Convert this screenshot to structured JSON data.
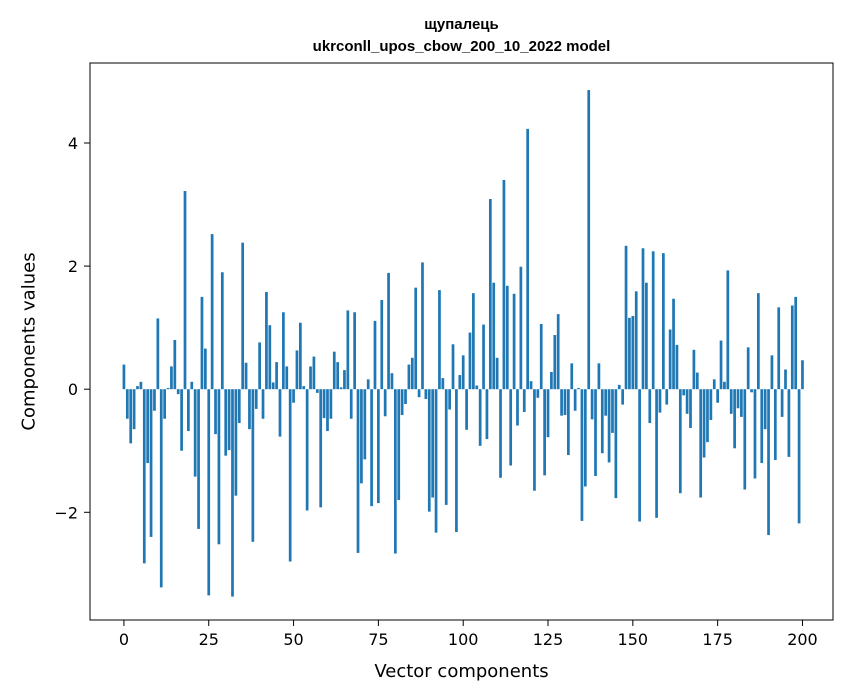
{
  "chart_data": {
    "type": "bar",
    "title_line1": "щупалець",
    "title_line2": "ukrconll_upos_cbow_200_10_2022 model",
    "xlabel": "Vector components",
    "ylabel": "Components values",
    "xlim": [
      -10,
      209
    ],
    "ylim": [
      -3.75,
      5.3
    ],
    "x_ticks": [
      0,
      25,
      50,
      75,
      100,
      125,
      150,
      175,
      200
    ],
    "y_ticks": [
      -2,
      0,
      2,
      4
    ],
    "y_tick_labels": [
      "−2",
      "0",
      "2",
      "4"
    ],
    "bar_color": "#1f77b4",
    "grid": false,
    "values": [
      0.4,
      -0.48,
      -0.88,
      -0.65,
      0.05,
      0.12,
      -2.83,
      -1.2,
      -2.4,
      -0.35,
      1.15,
      -3.22,
      -0.48,
      0.02,
      0.37,
      0.8,
      -0.08,
      -1.0,
      3.22,
      -0.68,
      0.12,
      -1.42,
      -2.27,
      1.5,
      0.66,
      -3.35,
      2.52,
      -0.73,
      -2.52,
      1.9,
      -1.08,
      -0.99,
      -3.37,
      -1.73,
      -0.55,
      2.38,
      0.43,
      -0.65,
      -2.48,
      -0.32,
      0.76,
      -0.48,
      1.58,
      1.04,
      0.11,
      0.44,
      -0.77,
      1.25,
      0.37,
      -2.8,
      -0.22,
      0.63,
      1.08,
      0.05,
      -1.97,
      0.37,
      0.53,
      -0.06,
      -1.92,
      -0.47,
      -0.68,
      -0.48,
      0.61,
      0.44,
      0.03,
      0.31,
      1.28,
      -0.48,
      1.25,
      -2.66,
      -1.53,
      -1.14,
      0.16,
      -1.9,
      1.11,
      -1.85,
      1.45,
      -0.44,
      1.89,
      0.26,
      -2.67,
      -1.8,
      -0.42,
      -0.24,
      0.4,
      0.51,
      1.65,
      -0.13,
      2.06,
      -0.16,
      -1.99,
      -1.76,
      -2.33,
      1.61,
      0.18,
      -1.88,
      -0.33,
      0.73,
      -2.32,
      0.23,
      0.55,
      -0.66,
      0.92,
      1.56,
      0.06,
      -0.92,
      1.05,
      -0.81,
      3.09,
      1.73,
      0.51,
      -1.44,
      3.4,
      1.68,
      -1.24,
      1.55,
      -0.59,
      1.99,
      -0.37,
      4.23,
      0.13,
      -1.65,
      -0.14,
      1.06,
      -1.4,
      -0.78,
      0.28,
      0.88,
      1.22,
      -0.43,
      -0.42,
      -1.07,
      0.42,
      -0.35,
      0.02,
      -2.14,
      -1.58,
      4.86,
      -0.49,
      -1.41,
      0.42,
      -1.04,
      -0.43,
      -1.19,
      -0.71,
      -1.77,
      0.07,
      -0.25,
      2.33,
      1.16,
      1.19,
      1.59,
      -2.15,
      2.29,
      1.73,
      -0.55,
      2.24,
      -2.09,
      -0.38,
      2.21,
      -0.25,
      0.97,
      1.47,
      0.72,
      -1.69,
      -0.1,
      -0.4,
      -0.63,
      0.64,
      0.27,
      -1.76,
      -1.11,
      -0.86,
      -0.5,
      0.16,
      -0.22,
      0.79,
      0.12,
      1.93,
      -0.4,
      -0.96,
      -0.31,
      -0.45,
      -1.63,
      0.68,
      -0.05,
      -1.45,
      1.56,
      -1.2,
      -0.65,
      -2.37,
      0.55,
      -1.15,
      1.33,
      -0.45,
      0.32,
      -1.1,
      1.36,
      1.5,
      -2.18,
      0.47
    ]
  }
}
